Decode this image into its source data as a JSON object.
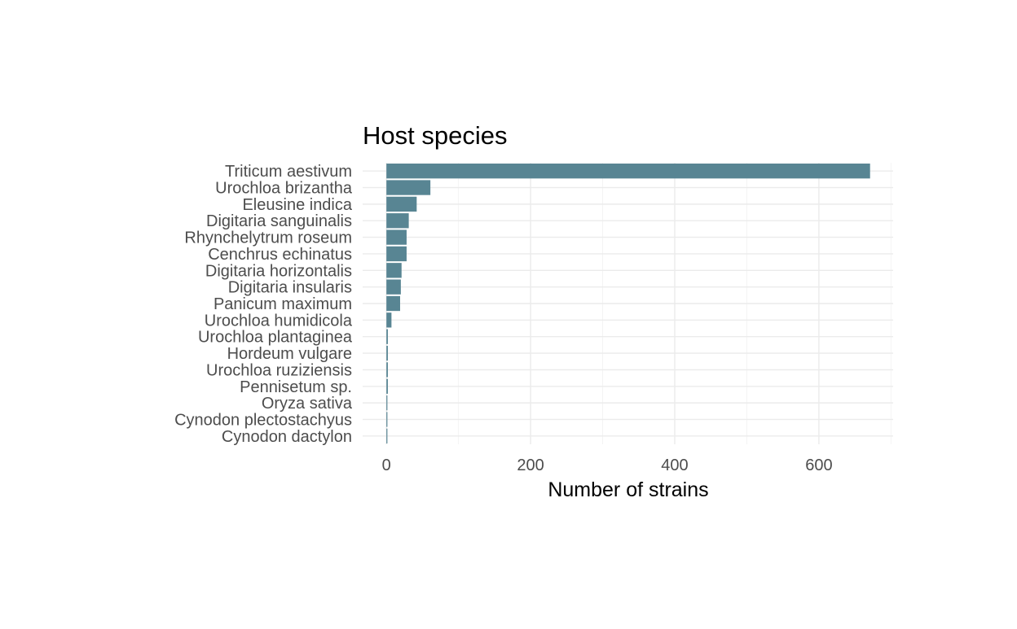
{
  "chart_data": {
    "type": "bar",
    "orientation": "horizontal",
    "title": "Host species",
    "xlabel": "Number of strains",
    "ylabel": "",
    "categories": [
      "Triticum aestivum",
      "Urochloa brizantha",
      "Eleusine indica",
      "Digitaria sanguinalis",
      "Rhynchelytrum roseum",
      "Cenchrus echinatus",
      "Digitaria horizontalis",
      "Digitaria insularis",
      "Panicum maximum",
      "Urochloa humidicola",
      "Urochloa plantaginea",
      "Hordeum vulgare",
      "Urochloa ruziziensis",
      "Pennisetum sp.",
      "Oryza sativa",
      "Cynodon plectostachyus",
      "Cynodon dactylon"
    ],
    "values": [
      671,
      61,
      42,
      31,
      28,
      28,
      21,
      20,
      19,
      7,
      2,
      2,
      2,
      2,
      1,
      1,
      1
    ],
    "xlim": [
      -33,
      703
    ],
    "xticks": [
      0,
      200,
      400,
      600
    ],
    "xtick_labels": [
      "0",
      "200",
      "400",
      "600"
    ],
    "grid": true,
    "bar_color": "#588593",
    "background_color": "#ffffff",
    "grid_color": "#ebebeb"
  }
}
